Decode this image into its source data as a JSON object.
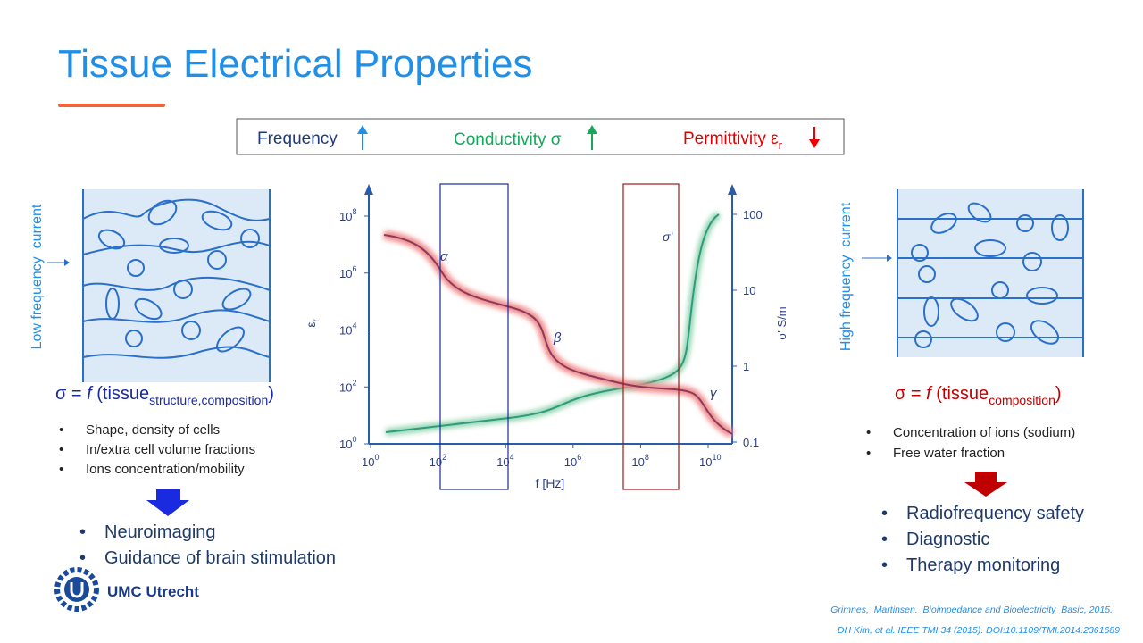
{
  "title": "Tissue Electrical Properties",
  "legend_bar": {
    "frequency": "Frequency",
    "conductivity": "Conductivity σ",
    "permittivity": "Permittivity ε",
    "permittivity_sub": "r"
  },
  "left": {
    "side_label": "Low frequency  current",
    "formula": {
      "prefix": "σ = ",
      "f": "f",
      "open": " (tissue",
      "sub": "structure,composition",
      "close": ")"
    },
    "bullets": [
      "Shape, density of cells",
      "In/extra cell volume fractions",
      "Ions concentration/mobility"
    ],
    "applications": [
      "Neuroimaging",
      "Guidance of brain stimulation"
    ]
  },
  "right": {
    "side_label": "High frequency  current",
    "formula": {
      "prefix": "σ = ",
      "f": "f",
      "open": " (tissue",
      "sub": "composition",
      "close": ")"
    },
    "bullets": [
      "Concentration of ions (sodium)",
      "Free water fraction"
    ],
    "applications": [
      "Radiofrequency safety",
      "Diagnostic",
      "Therapy monitoring"
    ]
  },
  "chart": {
    "y_label": "ε",
    "y_label_sub": "r",
    "y2_label": "σ' S/m",
    "x_label": "f [Hz]",
    "yticks": [
      {
        "base": "10",
        "exp": "0"
      },
      {
        "base": "10",
        "exp": "2"
      },
      {
        "base": "10",
        "exp": "4"
      },
      {
        "base": "10",
        "exp": "6"
      },
      {
        "base": "10",
        "exp": "8"
      }
    ],
    "xticks": [
      {
        "base": "10",
        "exp": "0"
      },
      {
        "base": "10",
        "exp": "2"
      },
      {
        "base": "10",
        "exp": "4"
      },
      {
        "base": "10",
        "exp": "6"
      },
      {
        "base": "10",
        "exp": "8"
      },
      {
        "base": "10",
        "exp": "10"
      }
    ],
    "y2ticks": [
      "0.1",
      "1",
      "10",
      "100"
    ],
    "annotations": {
      "alpha": "α",
      "beta": "β",
      "gamma": "γ",
      "sigma": "σ'"
    }
  },
  "logo": "UMC Utrecht",
  "references": [
    "Grimnes,  Martinsen.  Bioimpedance and Bioelectricity  Basic, 2015.",
    "DH Kim, et al. IEEE TMI 34 (2015). DOI:10.1109/TMI.2014.2361689"
  ]
}
